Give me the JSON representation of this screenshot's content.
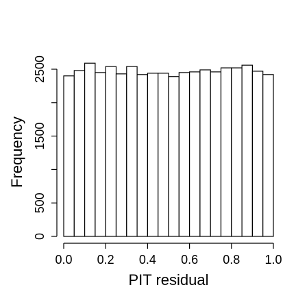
{
  "chart_data": {
    "type": "bar",
    "title": "",
    "xlabel": "PIT residual",
    "ylabel": "Frequency",
    "bin_edges": [
      0.0,
      0.05,
      0.1,
      0.15,
      0.2,
      0.25,
      0.3,
      0.35,
      0.4,
      0.45,
      0.5,
      0.55,
      0.6,
      0.65,
      0.7,
      0.75,
      0.8,
      0.85,
      0.9,
      0.95,
      1.0
    ],
    "values": [
      2400,
      2480,
      2590,
      2450,
      2540,
      2430,
      2540,
      2420,
      2440,
      2440,
      2390,
      2450,
      2460,
      2490,
      2460,
      2520,
      2520,
      2560,
      2470,
      2420
    ],
    "xlim": [
      0.0,
      1.0
    ],
    "ylim": [
      0,
      2500
    ],
    "x_ticks": [
      0.0,
      0.2,
      0.4,
      0.6,
      0.8,
      1.0
    ],
    "x_tick_labels": [
      "0.0",
      "0.2",
      "0.4",
      "0.6",
      "0.8",
      "1.0"
    ],
    "y_ticks": [
      0,
      500,
      1000,
      1500,
      2000,
      2500
    ],
    "y_tick_labels": [
      "0",
      "500",
      "",
      "1500",
      "",
      "2500"
    ],
    "bar_fill": "#ffffff",
    "bar_stroke": "#000000",
    "grid": false,
    "legend": "none"
  }
}
